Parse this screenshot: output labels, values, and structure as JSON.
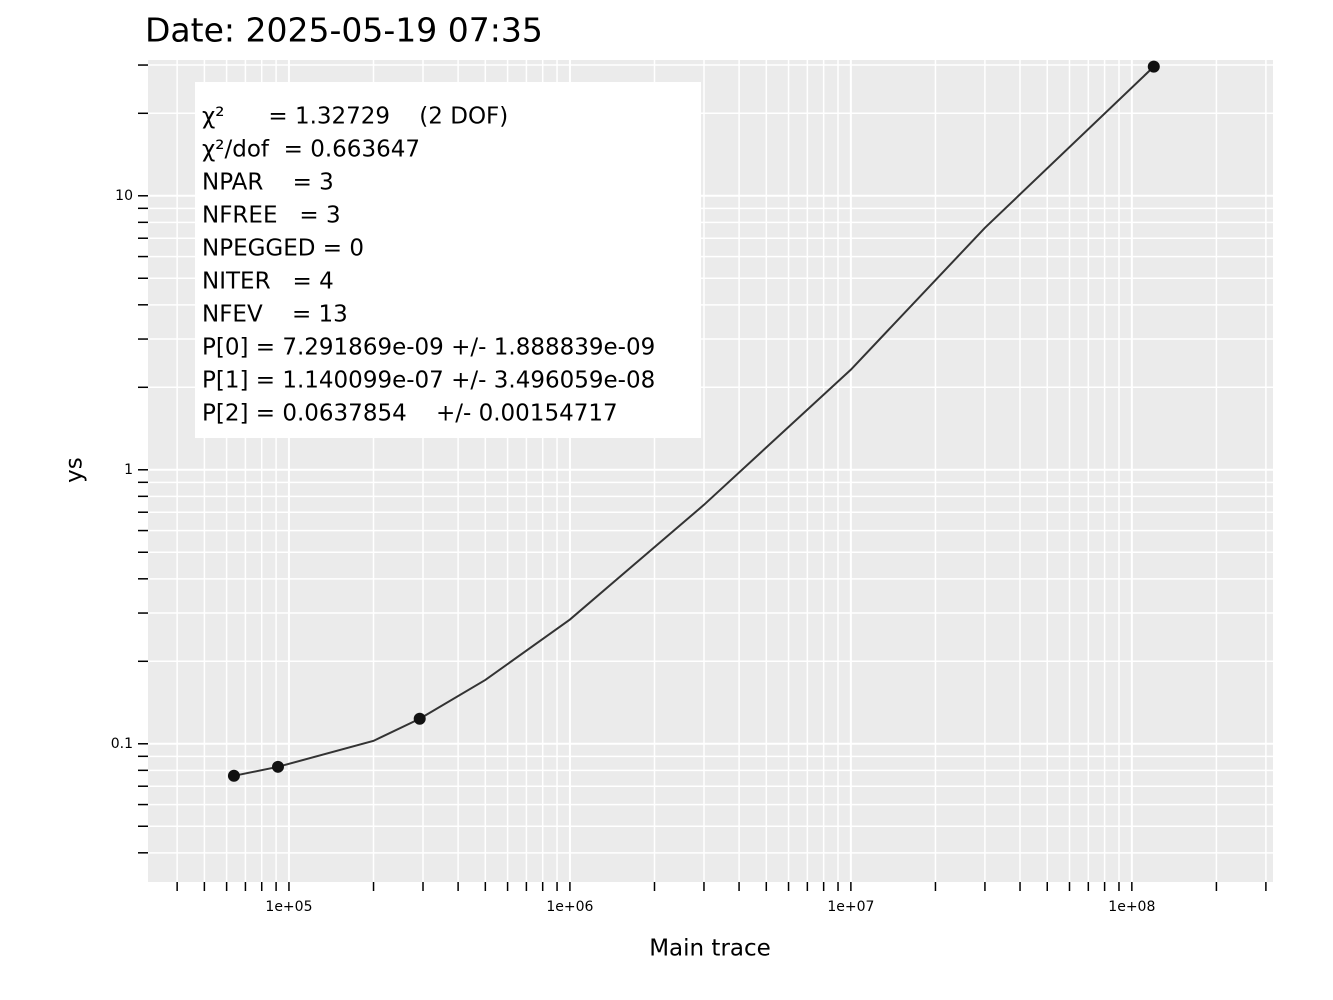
{
  "chart_data": {
    "type": "scatter",
    "title": "Date: 2025-05-19 07:35",
    "xlabel": "Main trace",
    "ylabel": "ys",
    "xscale": "log",
    "yscale": "log",
    "grid": true,
    "background": "#ebebeb",
    "xlim": [
      31500,
      318000000
    ],
    "ylim": [
      0.0313,
      31.3
    ],
    "xticks": [
      {
        "value": 100000,
        "label": "1e+05"
      },
      {
        "value": 1000000,
        "label": "1e+06"
      },
      {
        "value": 10000000,
        "label": "1e+07"
      },
      {
        "value": 100000000,
        "label": "1e+08"
      }
    ],
    "xminorticks": [
      40000,
      50000,
      60000,
      70000,
      80000,
      90000,
      200000,
      300000,
      400000,
      500000,
      600000,
      700000,
      800000,
      900000,
      2000000,
      3000000,
      4000000,
      5000000,
      6000000,
      7000000,
      8000000,
      9000000,
      20000000,
      30000000,
      40000000,
      50000000,
      60000000,
      70000000,
      80000000,
      90000000,
      200000000,
      300000000
    ],
    "yticks": [
      0.1,
      1,
      10
    ],
    "yminorticks": [
      0.04,
      0.05,
      0.06,
      0.07,
      0.08,
      0.09,
      0.2,
      0.3,
      0.4,
      0.5,
      0.6,
      0.7,
      0.8,
      0.9,
      2,
      3,
      4,
      5,
      6,
      7,
      8,
      9,
      20,
      30
    ],
    "series": [
      {
        "type": "line",
        "color": "#333333",
        "x": [
          63700,
          91400,
          200000,
          292000,
          500000,
          1000000,
          3000000,
          10000000,
          30000000,
          119700000
        ],
        "values": [
          0.0764,
          0.0824,
          0.1025,
          0.1234,
          0.171,
          0.284,
          0.745,
          2.32,
          7.64,
          29.6
        ]
      },
      {
        "type": "scatter",
        "color": "#111111",
        "x": [
          63700,
          91400,
          292000,
          119700000
        ],
        "values": [
          0.0764,
          0.0824,
          0.1234,
          29.6
        ]
      }
    ],
    "annotation": {
      "lines": [
        "χ²      = 1.32729    (2 DOF)",
        "χ²/dof  = 0.663647",
        "NPAR    = 3",
        "NFREE   = 3",
        "NPEGGED = 0",
        "NITER   = 4",
        "NFEV    = 13",
        "P[0] = 7.291869e-09 +/- 1.888839e-09",
        "P[1] = 1.140099e-07 +/- 3.496059e-08",
        "P[2] = 0.0637854    +/- 0.00154717"
      ]
    }
  }
}
